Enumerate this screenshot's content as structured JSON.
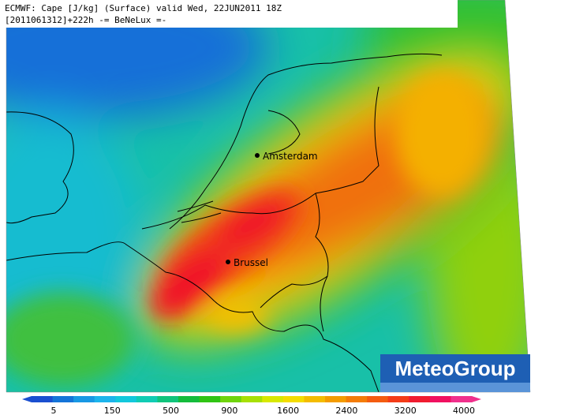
{
  "header": {
    "line1": "ECMWF: Cape [J/kg] (Surface) valid Wed, 22JUN2011 18Z",
    "line2": "[2011061312]+222h -= BeNeLux =-"
  },
  "cities": [
    {
      "label": "Amsterdam"
    },
    {
      "label": "Brussel"
    }
  ],
  "legend": {
    "ticks": [
      5,
      150,
      500,
      900,
      1600,
      2400,
      3200,
      4000
    ],
    "colors": [
      "#1a4fd0",
      "#1474d8",
      "#1898e4",
      "#1cb4ec",
      "#12c8dc",
      "#10ccb4",
      "#10c47c",
      "#14bc3c",
      "#30c414",
      "#70d40c",
      "#a8e004",
      "#d8e800",
      "#f4dc00",
      "#f4bc00",
      "#f49c00",
      "#f47c08",
      "#f45c10",
      "#f43c18",
      "#f01c30",
      "#f01060",
      "#f0308c"
    ]
  },
  "logo": "MeteoGroup"
}
